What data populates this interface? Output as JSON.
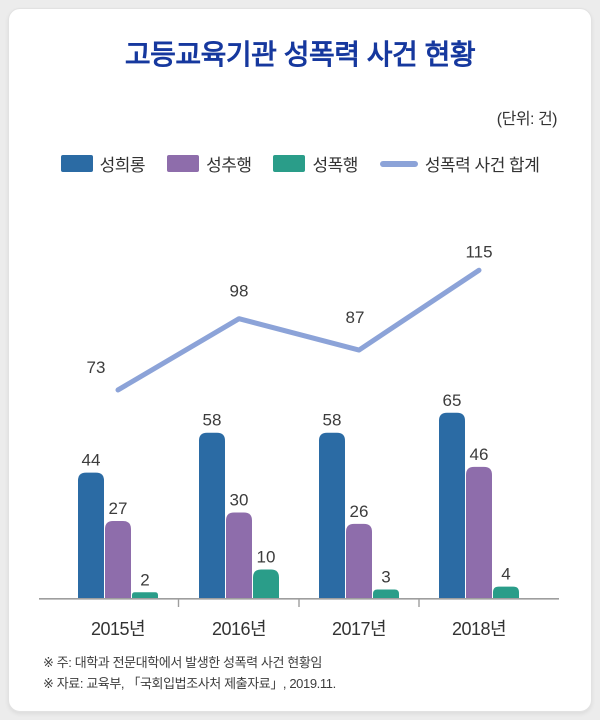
{
  "title": "고등교육기관 성폭력 사건 현황",
  "unit_label": "(단위: 건)",
  "legend": [
    {
      "name": "seonghuirong",
      "label": "성희롱",
      "color": "#2b6ba4",
      "swatch": "box"
    },
    {
      "name": "seongchuhaeng",
      "label": "성추행",
      "color": "#8e6dab",
      "swatch": "box"
    },
    {
      "name": "seongpokhaeng",
      "label": "성폭행",
      "color": "#2a9d89",
      "swatch": "box"
    },
    {
      "name": "seongpongnyeok-hapgye",
      "label": "성폭력 사건 합계",
      "color": "#8ca3d8",
      "swatch": "line"
    }
  ],
  "notes": [
    "※ 주: 대학과 전문대학에서 발생한 성폭력 사건 현황임",
    "※ 자료: 교육부, 「국회입법조사처 제출자료」, 2019.11."
  ],
  "chart_data": {
    "type": "bar",
    "subtype": "grouped bars with overlay line",
    "title": "고등교육기관 성폭력 사건 현황",
    "unit": "건",
    "categories": [
      "2015년",
      "2016년",
      "2017년",
      "2018년"
    ],
    "series": [
      {
        "name": "성희롱",
        "type": "bar",
        "color": "#2b6ba4",
        "values": [
          44,
          58,
          58,
          65
        ]
      },
      {
        "name": "성추행",
        "type": "bar",
        "color": "#8e6dab",
        "values": [
          27,
          30,
          26,
          46
        ]
      },
      {
        "name": "성폭행",
        "type": "bar",
        "color": "#2a9d89",
        "values": [
          2,
          10,
          3,
          4
        ]
      },
      {
        "name": "성폭력 사건 합계",
        "type": "line",
        "color": "#8ca3d8",
        "values": [
          73,
          98,
          87,
          115
        ]
      }
    ],
    "ylim": [
      0,
      135
    ],
    "grid": false,
    "y_axis_visible": false,
    "legend_position": "top",
    "value_labels": true,
    "colors": {
      "title": "#16389e",
      "value_label": "#3c3c3c",
      "axis": "#9e9e9e",
      "category_label": "#333333"
    }
  }
}
